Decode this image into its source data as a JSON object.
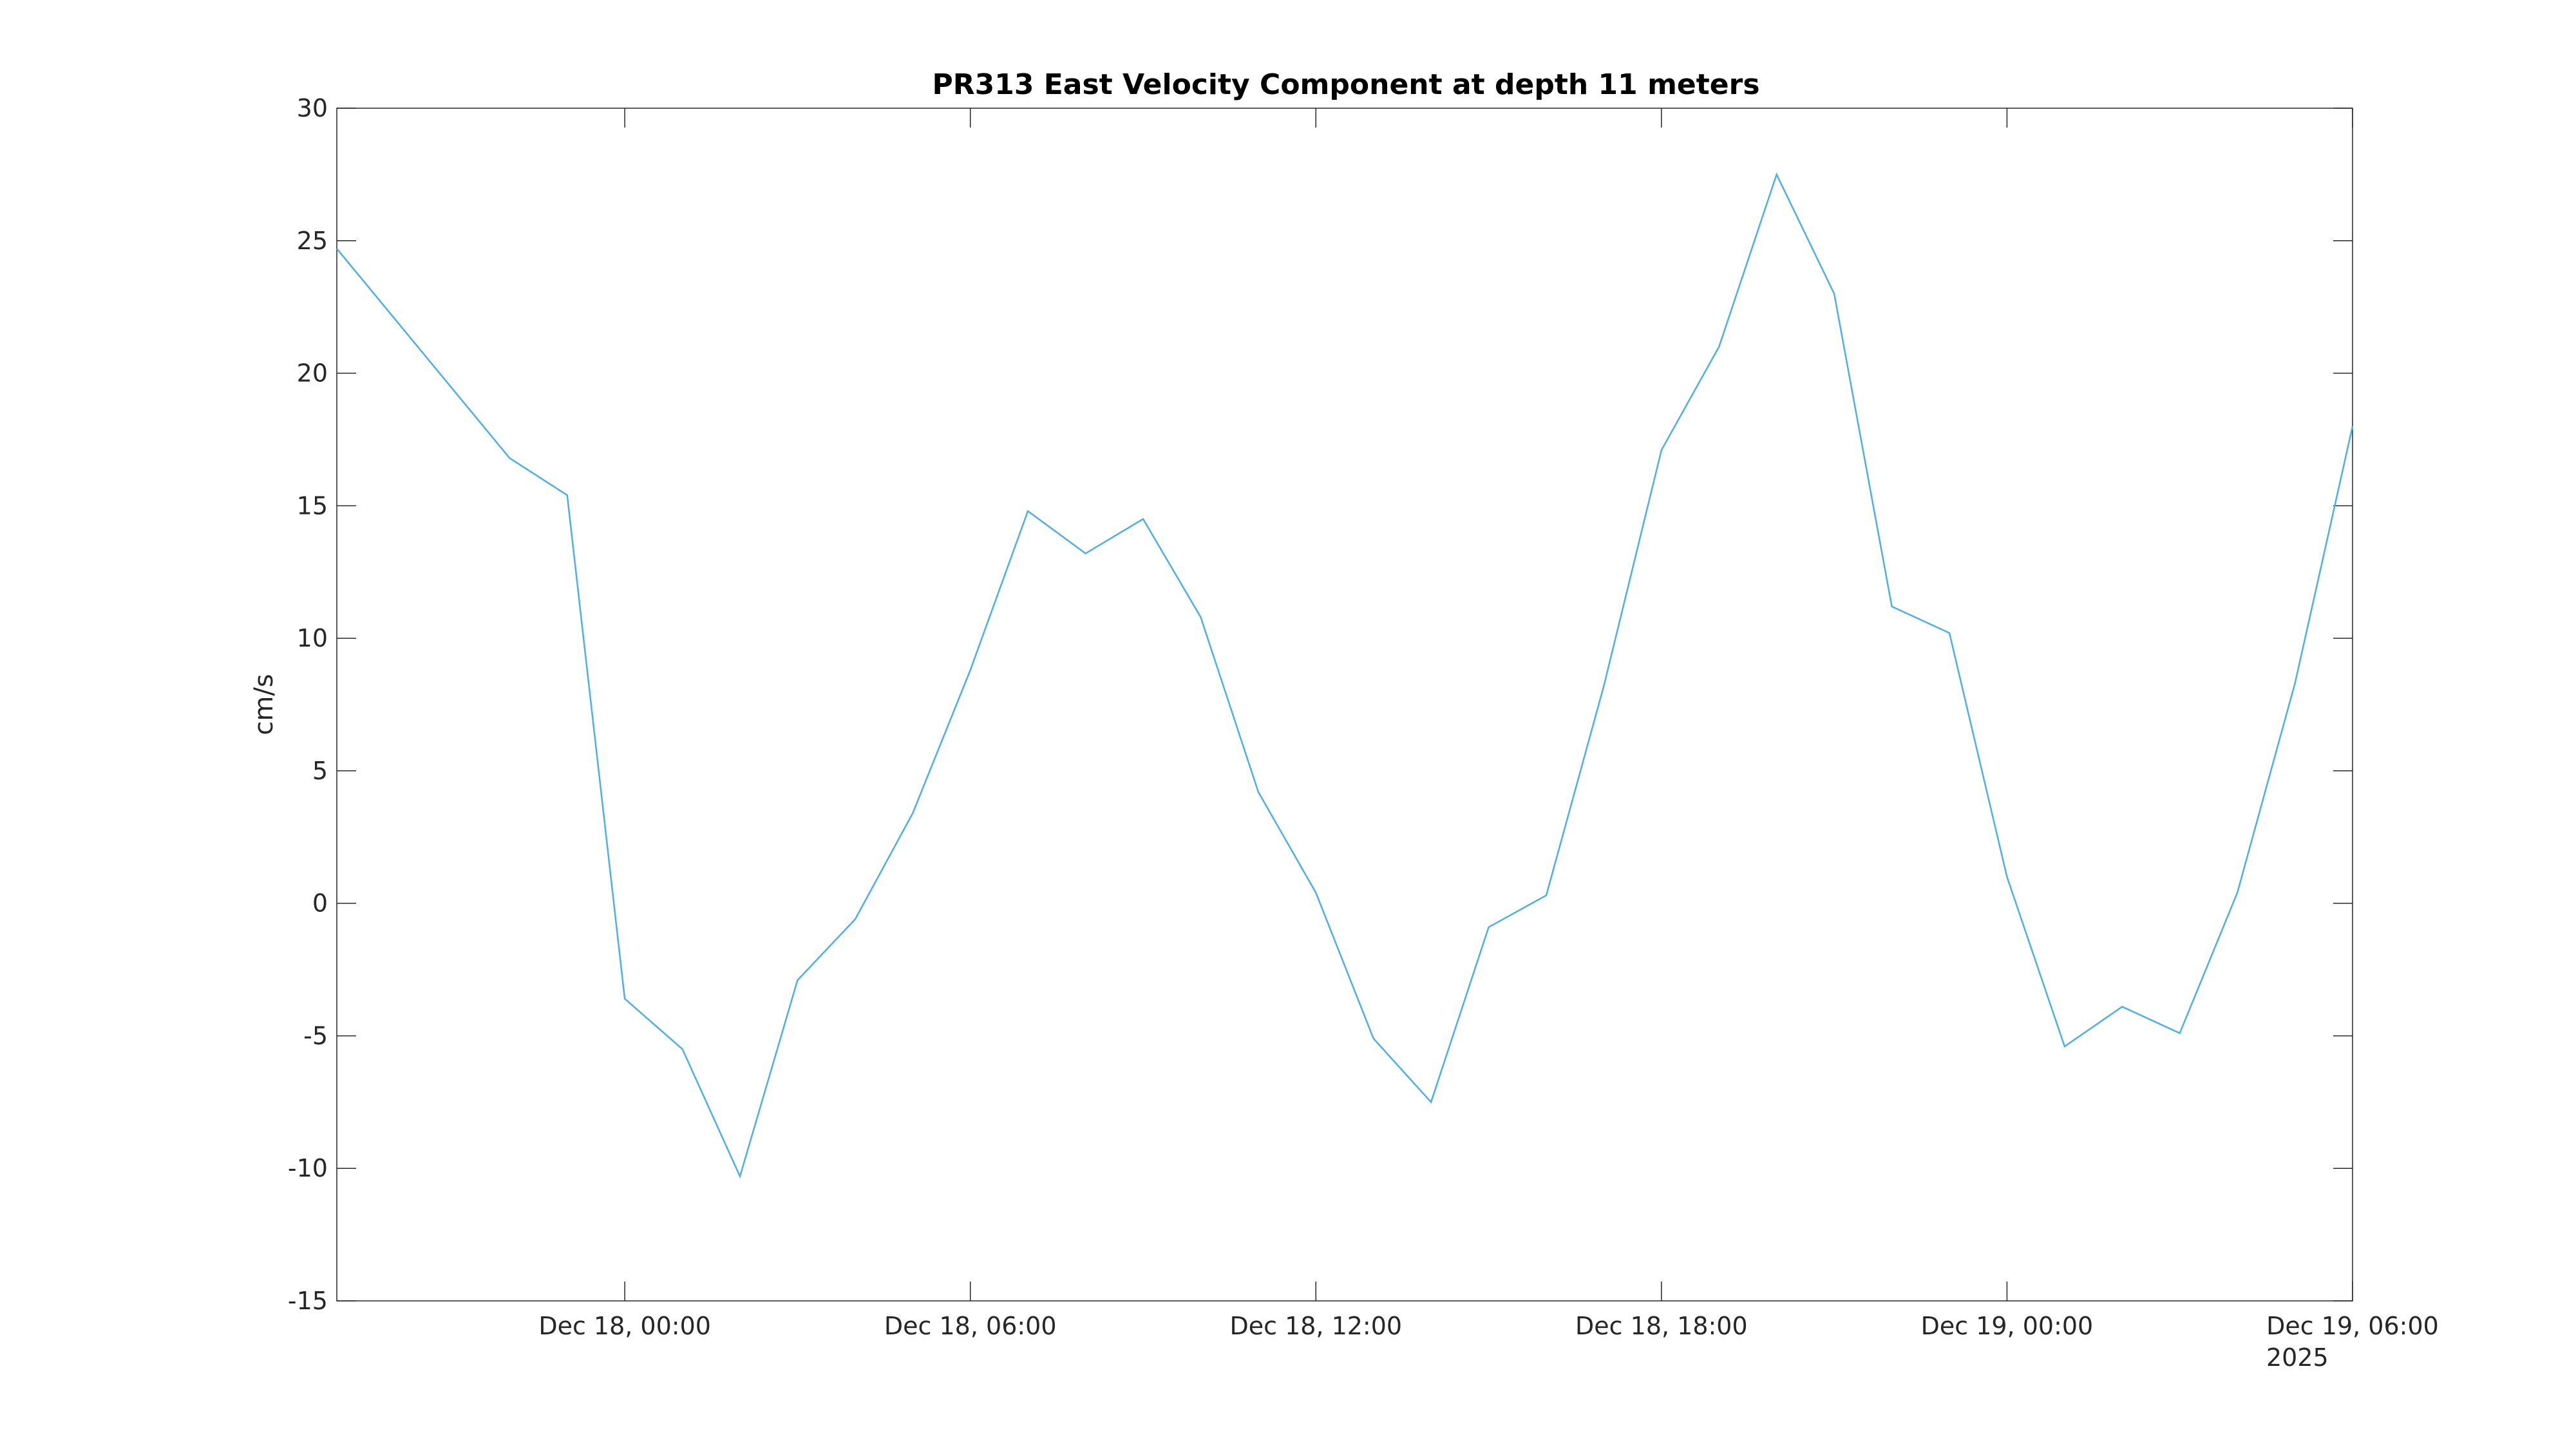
{
  "chart_data": {
    "type": "line",
    "title": "PR313 East Velocity Component at depth 11 meters",
    "xlabel": "",
    "ylabel": "cm/s",
    "year_label": "2025",
    "x_range": [
      "2025-12-17T19:00",
      "2025-12-19T06:00"
    ],
    "ylim": [
      -15,
      30
    ],
    "grid": false,
    "legend": "none",
    "line_color": "#4DAFE8",
    "x_ticks": [
      {
        "value": "2025-12-18T00:00",
        "label": "Dec 18, 00:00"
      },
      {
        "value": "2025-12-18T06:00",
        "label": "Dec 18, 06:00"
      },
      {
        "value": "2025-12-18T12:00",
        "label": "Dec 18, 12:00"
      },
      {
        "value": "2025-12-18T18:00",
        "label": "Dec 18, 18:00"
      },
      {
        "value": "2025-12-19T00:00",
        "label": "Dec 19, 00:00"
      },
      {
        "value": "2025-12-19T06:00",
        "label": "Dec 19, 06:00"
      }
    ],
    "y_ticks": [
      {
        "value": 30,
        "label": "30"
      },
      {
        "value": 25,
        "label": "25"
      },
      {
        "value": 20,
        "label": "20"
      },
      {
        "value": 15,
        "label": "15"
      },
      {
        "value": 10,
        "label": "10"
      },
      {
        "value": 5,
        "label": "5"
      },
      {
        "value": 0,
        "label": "0"
      },
      {
        "value": -5,
        "label": "-5"
      },
      {
        "value": -10,
        "label": "-10"
      },
      {
        "value": -15,
        "label": "-15"
      }
    ],
    "series": [
      {
        "x": [
          "2025-12-17T19:00",
          "2025-12-17T22:00",
          "2025-12-17T23:00",
          "2025-12-18T00:00",
          "2025-12-18T01:00",
          "2025-12-18T02:00",
          "2025-12-18T03:00",
          "2025-12-18T04:00",
          "2025-12-18T05:00",
          "2025-12-18T06:00",
          "2025-12-18T07:00",
          "2025-12-18T08:00",
          "2025-12-18T09:00",
          "2025-12-18T10:00",
          "2025-12-18T11:00",
          "2025-12-18T12:00",
          "2025-12-18T13:00",
          "2025-12-18T14:00",
          "2025-12-18T15:00",
          "2025-12-18T16:00",
          "2025-12-18T17:00",
          "2025-12-18T18:00",
          "2025-12-18T19:00",
          "2025-12-18T20:00",
          "2025-12-18T21:00",
          "2025-12-18T22:00",
          "2025-12-18T23:00",
          "2025-12-19T00:00",
          "2025-12-19T01:00",
          "2025-12-19T02:00",
          "2025-12-19T03:00",
          "2025-12-19T04:00",
          "2025-12-19T05:00",
          "2025-12-19T06:00"
        ],
        "y": [
          24.7,
          16.8,
          15.4,
          -3.6,
          -5.5,
          -10.3,
          -2.9,
          -0.6,
          3.4,
          8.8,
          14.8,
          13.2,
          14.5,
          10.8,
          4.2,
          0.4,
          -5.1,
          -7.5,
          -0.9,
          0.3,
          8.2,
          17.1,
          21.0,
          27.5,
          23.0,
          11.2,
          10.2,
          1.0,
          -5.4,
          -3.9,
          -4.9,
          0.4,
          8.3,
          18.0
        ]
      }
    ]
  }
}
